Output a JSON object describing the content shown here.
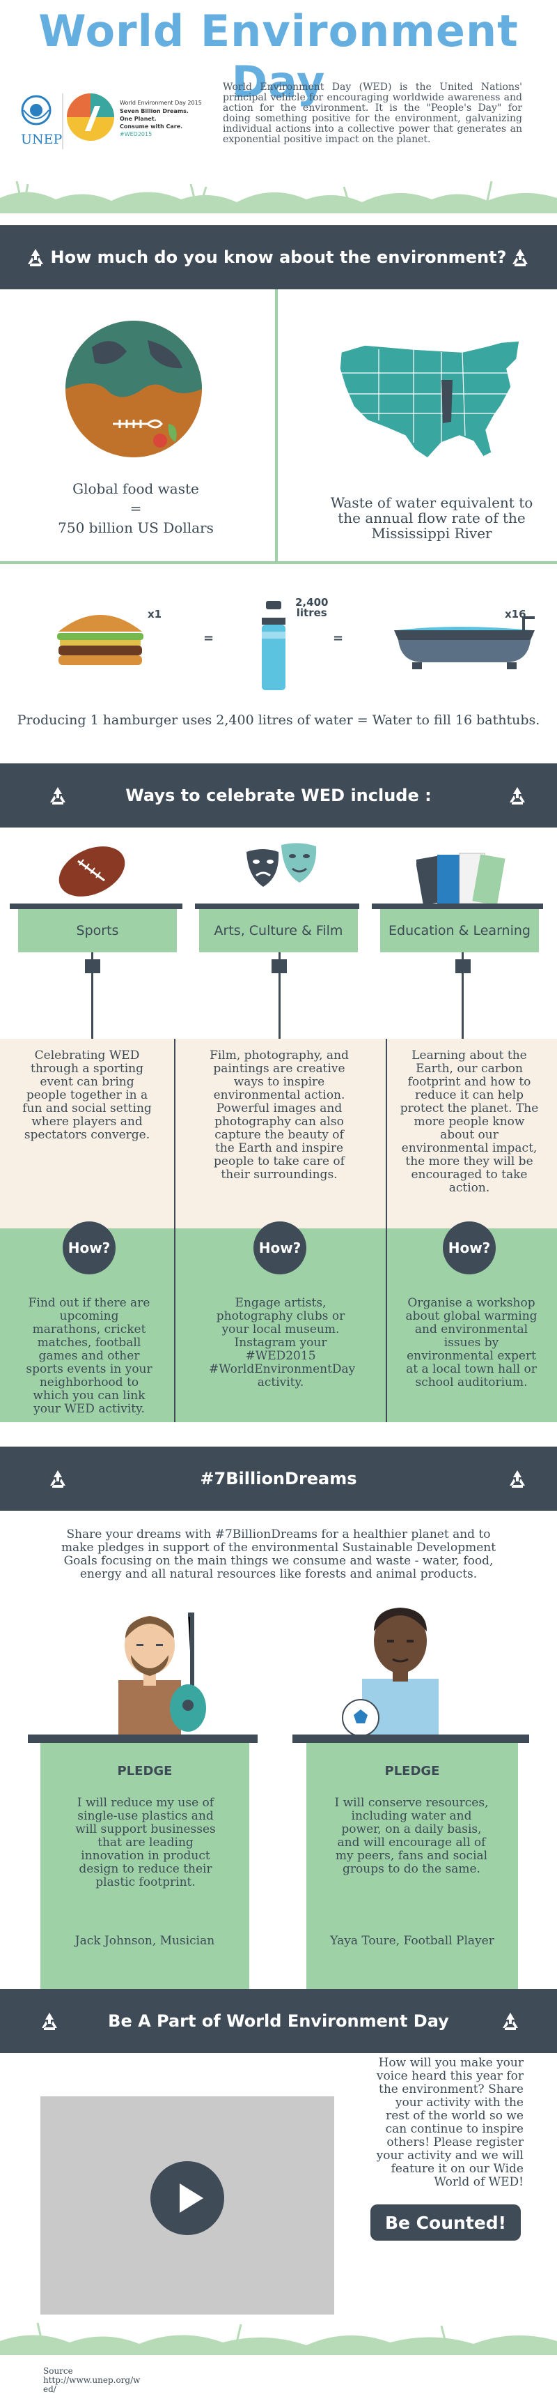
{
  "header": {
    "title": "World Environment Day",
    "intro": "World Environment Day (WED) is the United Nations' principal vehicle for encouraging worldwide awareness and action for the environment. It is the \"People's Day\" for doing something positive for the environment, galvanizing individual actions into a collective power that generates an exponential positive impact on the planet.",
    "unep_label": "UNEP",
    "wed_small_lines": [
      "World Environment Day 2015",
      "Seven Billion Dreams.",
      "One Planet.",
      "Consume with Care.",
      "#WED2015"
    ]
  },
  "bands": {
    "quiz": "How much do you know about the environment?",
    "ways": "Ways to celebrate WED include :",
    "dreams": "#7BillionDreams",
    "part": "Be A Part of World Environment Day"
  },
  "facts": {
    "food_waste_caption_line1": "Global food waste",
    "food_waste_caption_eq": "=",
    "food_waste_caption_line2": "750 billion US Dollars",
    "water_caption": "Waste of water equivalent to the annual flow rate of the Mississippi River",
    "burger_mult": "x1",
    "bottle_label_line1": "2,400",
    "bottle_label_line2": "litres",
    "tub_mult": "x16",
    "eq": "=",
    "hamburger_sentence": "Producing 1 hamburger uses 2,400 litres of water = Water to fill 16 bathtubs."
  },
  "ways": [
    {
      "label": "Sports",
      "desc": "Celebrating WED through a sporting event can bring people together in a fun and social setting where players and spectators converge.",
      "how_label": "How?",
      "how": "Find out if there are upcoming marathons, cricket matches, football games and other sports events in your neighborhood to which you can link your WED activity."
    },
    {
      "label": "Arts, Culture & Film",
      "desc": "Film, photography, and paintings are creative ways to inspire environmental action. Powerful images and photography can also capture the beauty of the Earth and inspire people to take care of their surroundings.",
      "how_label": "How?",
      "how": "Engage artists, photography clubs or your local museum. Instagram your #WED2015 #WorldEnvironmentDay activity."
    },
    {
      "label": "Education & Learning",
      "desc": "Learning about the Earth, our carbon footprint and how to reduce it can help protect the planet. The more people know about our environmental impact, the more they will be encouraged to take action.",
      "how_label": "How?",
      "how": "Organise a workshop about global warming and environmental issues by environmental expert at a local town hall or school auditorium."
    }
  ],
  "dreams": {
    "intro": "Share your dreams with #7BillionDreams for a healthier planet and to make pledges in support of the environmental Sustainable Development Goals focusing on the main things we consume and waste - water, food, energy and all natural resources like forests and animal products.",
    "pledges": [
      {
        "head": "PLEDGE",
        "text": "I will reduce my use of single-use plastics and will support businesses that are leading innovation in product design to reduce their plastic footprint.",
        "by": "Jack Johnson, Musician"
      },
      {
        "head": "PLEDGE",
        "text": "I will conserve resources, including water and power, on a daily basis, and will encourage all of my peers, fans and social groups to do the same.",
        "by": "Yaya Toure, Football Player"
      }
    ]
  },
  "part": {
    "text": "How will you make your voice heard this year for the environment? Share your activity with the rest of the world so we can continue to inspire others! Please register your activity and we will feature it on our Wide World of WED!",
    "button": "Be Counted!"
  },
  "footer": {
    "source_label": "Source",
    "source_url_line1": "http://www.unep.org/w",
    "source_url_line2": "ed/"
  },
  "colors": {
    "accent_blue": "#64aee0",
    "dark": "#3f4b57",
    "mint": "#9fd1a7",
    "peach": "#f8f0e4",
    "teal_map": "#3aa6a0"
  }
}
